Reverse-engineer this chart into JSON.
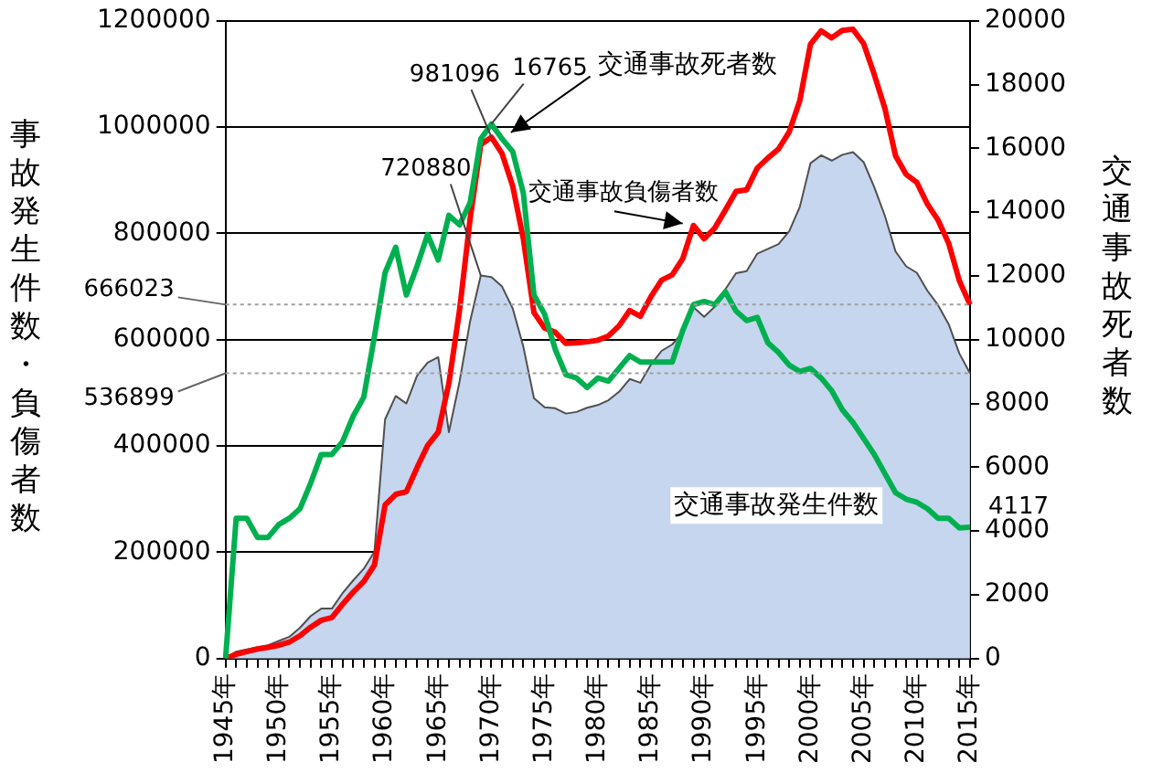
{
  "chart_data": {
    "type": "line",
    "ylabel": "事故発生件数・負傷者数",
    "y2label": "交通事故死者数",
    "categories": [
      "1945年",
      null,
      null,
      null,
      null,
      "1950年",
      null,
      null,
      null,
      null,
      "1955年",
      null,
      null,
      null,
      null,
      "1960年",
      null,
      null,
      null,
      null,
      "1965年",
      null,
      null,
      null,
      null,
      "1970年",
      null,
      null,
      null,
      null,
      "1975年",
      null,
      null,
      null,
      null,
      "1980年",
      null,
      null,
      null,
      null,
      "1985年",
      null,
      null,
      null,
      null,
      "1990年",
      null,
      null,
      null,
      null,
      "1995年",
      null,
      null,
      null,
      null,
      "2000年",
      null,
      null,
      null,
      null,
      "2005年",
      null,
      null,
      null,
      null,
      "2010年",
      null,
      null,
      null,
      null,
      "2015年"
    ],
    "series": [
      {
        "name": "交通事故発生件数",
        "type": "area",
        "color": "#c6d6ee",
        "values": [
          0,
          13000,
          17000,
          21000,
          25000,
          33000,
          41000,
          58000,
          80000,
          94000,
          94000,
          123000,
          147000,
          169000,
          201000,
          450000,
          494000,
          480000,
          532000,
          557000,
          567000,
          426000,
          521000,
          635000,
          720880,
          718000,
          700000,
          659000,
          587000,
          490000,
          473000,
          471000,
          461000,
          464000,
          472000,
          477000,
          486000,
          502000,
          526000,
          519000,
          553000,
          579000,
          591000,
          614000,
          661000,
          643000,
          662000,
          695000,
          725000,
          729000,
          762000,
          771000,
          780000,
          804000,
          850000,
          932000,
          947000,
          937000,
          948000,
          953000,
          934000,
          887000,
          833000,
          766000,
          738000,
          726000,
          692000,
          665000,
          629000,
          574000,
          536899
        ],
        "value_labels": [
          null,
          null,
          null,
          null,
          null,
          null,
          null,
          null,
          null,
          null,
          null,
          null,
          null,
          null,
          null,
          null,
          null,
          null,
          null,
          null,
          null,
          null,
          null,
          null,
          "720880",
          null,
          null,
          null,
          null,
          null,
          null,
          null,
          null,
          null,
          null,
          null,
          null,
          null,
          null,
          null,
          null,
          null,
          null,
          null,
          null,
          null,
          null,
          null,
          null,
          null,
          null,
          null,
          null,
          null,
          null,
          null,
          null,
          null,
          null,
          null,
          null,
          null,
          null,
          null,
          null,
          null,
          null,
          null,
          null,
          null,
          null
        ]
      },
      {
        "name": "交通事故負傷者数",
        "type": "line",
        "color": "#ff0000",
        "values": [
          0,
          8000,
          13000,
          18000,
          21000,
          25000,
          31000,
          43000,
          59000,
          72000,
          77000,
          102000,
          125000,
          145000,
          176000,
          289000,
          309000,
          314000,
          359000,
          401000,
          426000,
          518000,
          655000,
          828000,
          967000,
          981096,
          950000,
          889000,
          790000,
          651000,
          622000,
          614000,
          593000,
          594000,
          596000,
          599000,
          607000,
          626000,
          655000,
          644000,
          681000,
          712000,
          722000,
          753000,
          815000,
          790000,
          810000,
          844000,
          879000,
          882000,
          923000,
          942000,
          959000,
          991000,
          1050000,
          1156000,
          1181000,
          1168000,
          1182000,
          1184000,
          1157000,
          1099000,
          1035000,
          946000,
          911000,
          896000,
          855000,
          825000,
          781000,
          711000,
          666023
        ],
        "value_labels": [
          null,
          null,
          null,
          null,
          null,
          null,
          null,
          null,
          null,
          null,
          null,
          null,
          null,
          null,
          null,
          null,
          null,
          null,
          null,
          null,
          null,
          null,
          null,
          null,
          null,
          "981096",
          null,
          null,
          null,
          null,
          null,
          null,
          null,
          null,
          null,
          null,
          null,
          null,
          null,
          null,
          null,
          null,
          null,
          null,
          null,
          null,
          null,
          null,
          null,
          null,
          null,
          null,
          null,
          null,
          null,
          null,
          null,
          null,
          null,
          null,
          null,
          null,
          null,
          null,
          null,
          null,
          null,
          null,
          null,
          null,
          null
        ]
      },
      {
        "name": "交通事故死者数",
        "type": "line",
        "axis": "y2",
        "color": "#00b050",
        "values": [
          0,
          4400,
          4400,
          3800,
          3800,
          4200,
          4400,
          4700,
          5500,
          6400,
          6400,
          6800,
          7600,
          8200,
          10100,
          12100,
          12900,
          11400,
          12300,
          13300,
          12500,
          13900,
          13600,
          14300,
          16300,
          16765,
          16300,
          15900,
          14600,
          11400,
          10800,
          9700,
          8900,
          8800,
          8500,
          8800,
          8700,
          9100,
          9500,
          9300,
          9300,
          9300,
          9300,
          10300,
          11100,
          11200,
          11100,
          11500,
          10900,
          10600,
          10700,
          9900,
          9600,
          9200,
          9000,
          9100,
          8800,
          8400,
          7800,
          7400,
          6900,
          6400,
          5800,
          5200,
          5000,
          4900,
          4700,
          4400,
          4400,
          4100,
          4117
        ],
        "value_labels": [
          null,
          null,
          null,
          null,
          null,
          null,
          null,
          null,
          null,
          null,
          null,
          null,
          null,
          null,
          null,
          null,
          null,
          null,
          null,
          null,
          null,
          null,
          null,
          null,
          null,
          "16765",
          null,
          null,
          null,
          null,
          null,
          null,
          null,
          null,
          null,
          null,
          null,
          null,
          null,
          null,
          null,
          null,
          null,
          null,
          null,
          null,
          null,
          null,
          null,
          null,
          null,
          null,
          null,
          null,
          null,
          null,
          null,
          null,
          null,
          null,
          null,
          null,
          null,
          null,
          null,
          null,
          null,
          null,
          null,
          null,
          "4117"
        ]
      }
    ],
    "ylim": [
      0,
      1200000
    ],
    "yticks": [
      0,
      200000,
      400000,
      600000,
      800000,
      1000000,
      1200000
    ],
    "y2lim": [
      0,
      20000
    ],
    "y2ticks": [
      0,
      2000,
      4000,
      6000,
      8000,
      10000,
      12000,
      14000,
      16000,
      18000,
      20000
    ],
    "ref_lines": [
      {
        "axis": "y",
        "value": 666023,
        "label": "666023",
        "color": "#a0a0a0",
        "line_style": "dotted"
      },
      {
        "axis": "y",
        "value": 536899,
        "label": "536899",
        "color": "#a0a0a0",
        "line_style": "dotted"
      }
    ],
    "grid": "y",
    "marker": "none"
  }
}
